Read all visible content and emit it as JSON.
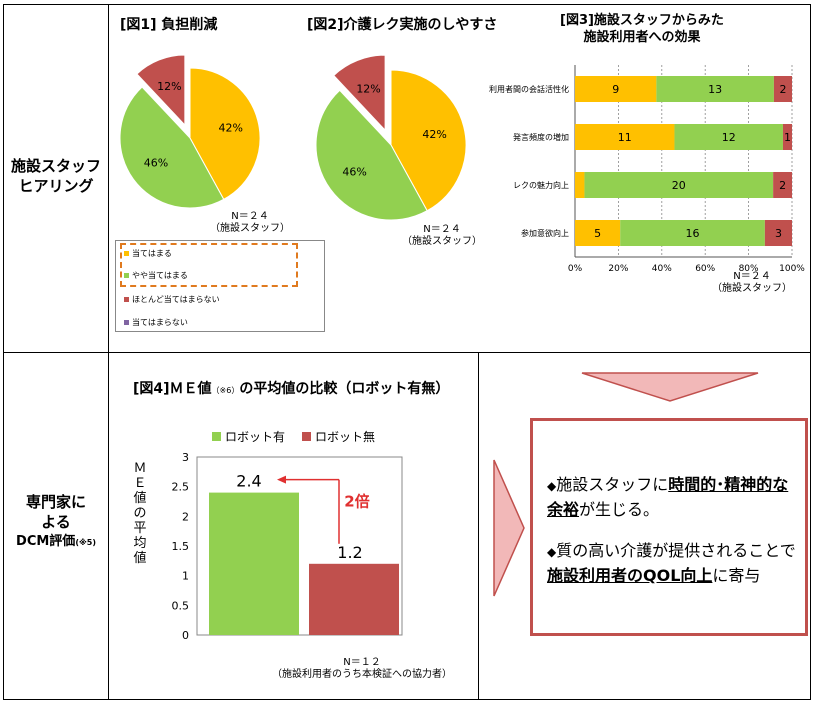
{
  "row_labels": {
    "row1": [
      "施設スタッフ",
      "ヒアリング"
    ],
    "row2": [
      "専門家に",
      "よる",
      "DCM評価",
      "(※5)"
    ]
  },
  "fig1": {
    "title": "[図1] 負担削減",
    "n_label": "N＝２４",
    "n_sub": "（施設スタッフ）"
  },
  "fig2": {
    "title": "[図2]介護レク実施のしやすさ",
    "n_label": "N＝２４",
    "n_sub": "（施設スタッフ）"
  },
  "fig3": {
    "title_line1": "[図3]施設スタッフからみた",
    "title_line2": "施設利用者への効果",
    "n_label": "N＝２４",
    "n_sub": "（施設スタッフ）"
  },
  "legend": {
    "items": [
      "当てはまる",
      "やや当てはまる",
      "ほとんど当てはまらない",
      "当てはまらない"
    ]
  },
  "fig4": {
    "title": "[図4]ＭＥ値",
    "title_note": "（※6）",
    "title_rest": "の平均値の比較（ロボット有無）",
    "ylabel": "ＭＥ値の平均値",
    "annotation": "2倍",
    "n_label": "N＝１２",
    "n_sub": "（施設利用者のうち本検証への協力者）"
  },
  "result": {
    "b1_pre": "施設スタッフに",
    "b1_bold1": "時間的･精神的な余裕",
    "b1_post": "が生じる。",
    "b2_pre": "質の高い介護が提供されることで",
    "b2_bold": "施設利用者のQOL向上",
    "b2_post": "に寄与",
    "bullet_mark": "◆"
  },
  "colors": {
    "orange": "#ffc000",
    "green": "#92d050",
    "red": "#c0504d",
    "purple": "#8064a2",
    "arrow_fill": "#f2b8b8",
    "arrow_stroke": "#c0504d"
  },
  "chart_data": [
    {
      "type": "pie",
      "labels": [
        "当てはまる",
        "やや当てはまる",
        "ほとんど当てはまらない"
      ],
      "values": [
        42,
        46,
        12
      ],
      "data_labels": [
        "42%",
        "46%",
        "12%"
      ],
      "colors": [
        "#ffc000",
        "#92d050",
        "#c0504d"
      ]
    },
    {
      "type": "pie",
      "labels": [
        "当てはまる",
        "やや当てはまる",
        "ほとんど当てはまらない"
      ],
      "values": [
        42,
        46,
        12
      ],
      "data_labels": [
        "42%",
        "46%",
        "12%"
      ],
      "colors": [
        "#ffc000",
        "#92d050",
        "#c0504d"
      ]
    },
    {
      "type": "bar",
      "orientation": "horizontal-stacked-100",
      "categories": [
        "利用者間の会話活性化",
        "発言頻度の増加",
        "レクの魅力向上",
        "参加意欲向上"
      ],
      "series": [
        {
          "values": [
            9,
            11,
            1,
            5
          ],
          "color": "#ffc000"
        },
        {
          "values": [
            13,
            12,
            20,
            16
          ],
          "color": "#92d050"
        },
        {
          "values": [
            2,
            1,
            2,
            3
          ],
          "color": "#c0504d"
        }
      ],
      "data_labels": [
        [
          "9",
          "11",
          "",
          "5"
        ],
        [
          "13",
          "12",
          "20",
          "16"
        ],
        [
          "2",
          "1",
          "2",
          "3"
        ]
      ],
      "xlim": [
        0,
        100
      ],
      "xticks": [
        "0%",
        "20%",
        "40%",
        "60%",
        "80%",
        "100%"
      ]
    },
    {
      "type": "bar",
      "categories": [
        "ロボット有",
        "ロボット無"
      ],
      "values": [
        2.4,
        1.2
      ],
      "data_labels": [
        "2.4",
        "1.2"
      ],
      "legend": [
        "ロボット有",
        "ロボット無"
      ],
      "colors": [
        "#92d050",
        "#c0504d"
      ],
      "ylim": [
        0,
        3
      ],
      "yticks": [
        "0",
        "0.5",
        "1",
        "1.5",
        "2",
        "2.5",
        "3"
      ]
    }
  ]
}
